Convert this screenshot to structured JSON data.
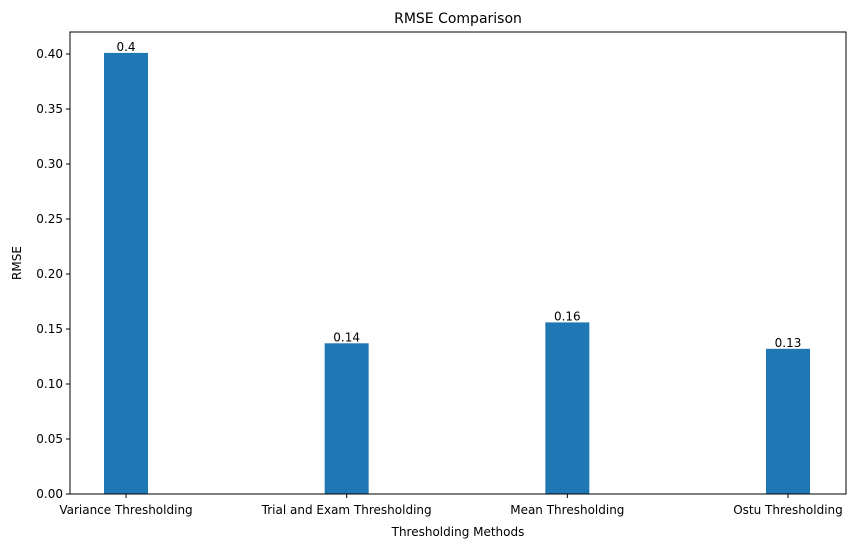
{
  "chart_data": {
    "type": "bar",
    "title": "RMSE Comparison",
    "xlabel": "Thresholding Methods",
    "ylabel": "RMSE",
    "categories": [
      "Variance Thresholding",
      "Trial and Exam Thresholding",
      "Mean Thresholding",
      "Ostu Thresholding"
    ],
    "values": [
      0.401,
      0.137,
      0.156,
      0.132
    ],
    "value_labels": [
      "0.4",
      "0.14",
      "0.16",
      "0.13"
    ],
    "ylim": [
      0,
      0.42
    ],
    "yticks": [
      0.0,
      0.05,
      0.1,
      0.15,
      0.2,
      0.25,
      0.3,
      0.35,
      0.4
    ],
    "ytick_labels": [
      "0.00",
      "0.05",
      "0.10",
      "0.15",
      "0.20",
      "0.25",
      "0.30",
      "0.35",
      "0.40"
    ],
    "grid": false,
    "bar_color": "#1f77b4"
  }
}
